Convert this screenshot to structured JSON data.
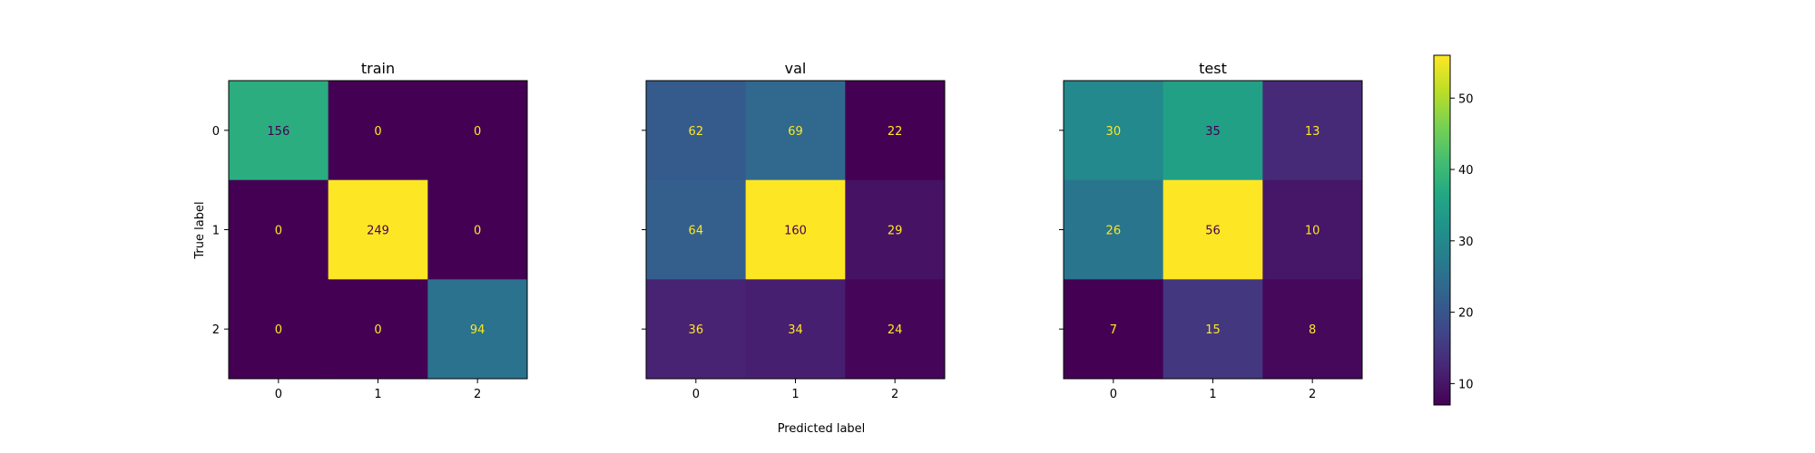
{
  "chart_data": {
    "type": "heatmap",
    "xlabel": "Predicted label",
    "ylabel": "True label",
    "tick_labels": [
      "0",
      "1",
      "2"
    ],
    "colormap": "viridis",
    "colorbar": {
      "range": [
        7,
        56
      ],
      "ticks": [
        10,
        20,
        30,
        40,
        50
      ]
    },
    "panels": [
      {
        "title": "train",
        "matrix": [
          [
            156,
            0,
            0
          ],
          [
            0,
            249,
            0
          ],
          [
            0,
            0,
            94
          ]
        ]
      },
      {
        "title": "val",
        "matrix": [
          [
            62,
            69,
            22
          ],
          [
            64,
            160,
            29
          ],
          [
            36,
            34,
            24
          ]
        ]
      },
      {
        "title": "test",
        "matrix": [
          [
            30,
            35,
            13
          ],
          [
            26,
            56,
            10
          ],
          [
            7,
            15,
            8
          ]
        ]
      }
    ]
  }
}
